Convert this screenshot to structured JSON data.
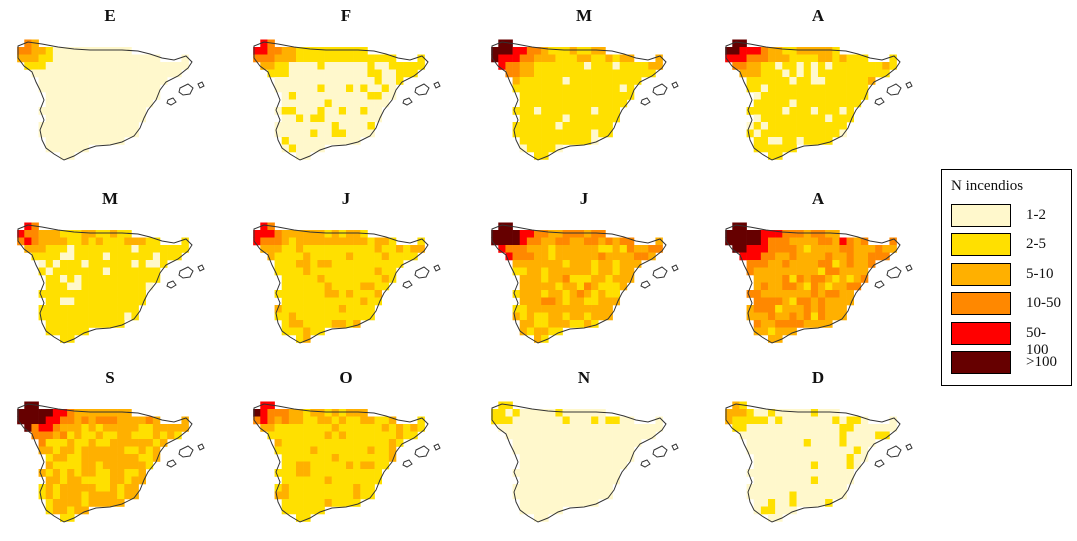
{
  "panels": [
    {
      "label": "E"
    },
    {
      "label": "F"
    },
    {
      "label": "M"
    },
    {
      "label": "A"
    },
    {
      "label": "M"
    },
    {
      "label": "J"
    },
    {
      "label": "J"
    },
    {
      "label": "A"
    },
    {
      "label": "S"
    },
    {
      "label": "O"
    },
    {
      "label": "N"
    },
    {
      "label": "D"
    }
  ],
  "legend": {
    "title": "N incendios",
    "items": [
      {
        "label": "1-2",
        "color": "#FFF8CC"
      },
      {
        "label": "2-5",
        "color": "#FFE000"
      },
      {
        "label": "5-10",
        "color": "#FFB000"
      },
      {
        "label": "10-50",
        "color": "#FF8800"
      },
      {
        "label": "50-100",
        "color": "#FF0000"
      },
      {
        "label": ">100",
        "color": "#660000"
      }
    ]
  }
}
